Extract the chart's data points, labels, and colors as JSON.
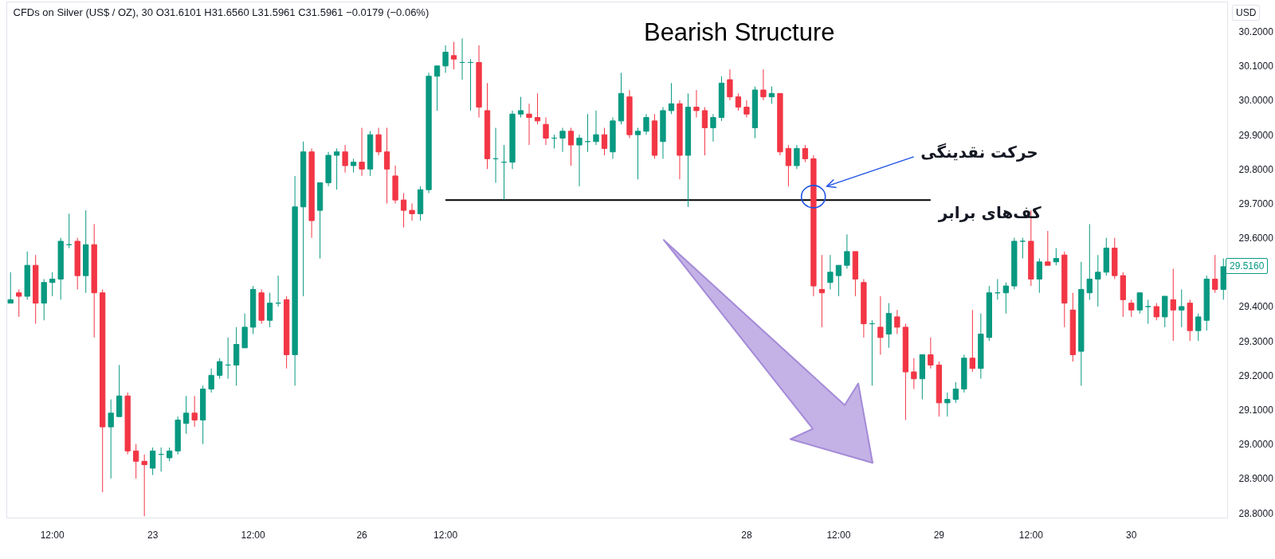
{
  "chart_data": {
    "type": "candlestick",
    "title": "Bearish Structure",
    "subtitle": "CFDs on Silver (US$ / OZ), 30  O31.6101 H31.6560 L31.5961 C31.5961 −0.0179 (−0.06%)",
    "ylabel": "USD",
    "categories": [
      null,
      null,
      null,
      null,
      null,
      "12:00",
      null,
      null,
      null,
      null,
      null,
      null,
      null,
      null,
      null,
      null,
      null,
      "23",
      null,
      null,
      null,
      null,
      null,
      null,
      null,
      null,
      null,
      null,
      null,
      "12:00",
      null,
      null,
      null,
      null,
      null,
      null,
      null,
      null,
      null,
      null,
      null,
      null,
      "26",
      null,
      null,
      null,
      null,
      null,
      null,
      null,
      null,
      null,
      "12:00",
      null,
      null,
      null,
      null,
      null,
      null,
      null,
      null,
      null,
      null,
      null,
      null,
      null,
      null,
      null,
      null,
      null,
      null,
      null,
      null,
      null,
      null,
      null,
      null,
      null,
      null,
      null,
      null,
      null,
      null,
      null,
      null,
      null,
      null,
      null,
      "28",
      null,
      null,
      null,
      null,
      null,
      null,
      null,
      null,
      null,
      null,
      "12:00",
      null,
      null,
      null,
      null,
      null,
      null,
      null,
      null,
      null,
      null,
      null,
      "29",
      null,
      null,
      null,
      null,
      null,
      null,
      null,
      null,
      null,
      null,
      "12:00",
      null,
      null,
      null,
      null,
      null,
      null,
      null,
      null,
      null,
      null,
      null,
      "30",
      null,
      null,
      null,
      null,
      null,
      null,
      null,
      null,
      null,
      null,
      null
    ],
    "ohlc": [
      [
        29.41,
        29.5,
        29.41,
        29.42
      ],
      [
        29.44,
        29.45,
        29.37,
        29.43
      ],
      [
        29.43,
        29.56,
        29.42,
        29.52
      ],
      [
        29.52,
        29.55,
        29.35,
        29.41
      ],
      [
        29.41,
        29.48,
        29.36,
        29.47
      ],
      [
        29.47,
        29.5,
        29.43,
        29.48
      ],
      [
        29.48,
        29.6,
        29.42,
        29.59
      ],
      [
        29.58,
        29.67,
        29.57,
        29.58
      ],
      [
        29.59,
        29.6,
        29.45,
        29.49
      ],
      [
        29.49,
        29.68,
        29.44,
        29.58
      ],
      [
        29.58,
        29.64,
        29.31,
        29.44
      ],
      [
        29.44,
        29.45,
        28.86,
        29.05
      ],
      [
        29.05,
        29.13,
        28.9,
        29.09
      ],
      [
        29.08,
        29.23,
        29.08,
        29.14
      ],
      [
        29.14,
        29.15,
        28.97,
        28.98
      ],
      [
        28.98,
        29.0,
        28.9,
        28.95
      ],
      [
        28.95,
        28.97,
        28.79,
        28.94
      ],
      [
        28.93,
        28.99,
        28.91,
        28.98
      ],
      [
        28.97,
        28.99,
        28.92,
        28.97
      ],
      [
        28.96,
        28.99,
        28.95,
        28.98
      ],
      [
        28.98,
        29.08,
        28.97,
        29.07
      ],
      [
        29.06,
        29.14,
        29.03,
        29.09
      ],
      [
        29.09,
        29.14,
        29.05,
        29.07
      ],
      [
        29.07,
        29.17,
        29.0,
        29.16
      ],
      [
        29.16,
        29.22,
        29.15,
        29.2
      ],
      [
        29.2,
        29.25,
        29.19,
        29.24
      ],
      [
        29.23,
        29.31,
        29.19,
        29.23
      ],
      [
        29.23,
        29.34,
        29.17,
        29.29
      ],
      [
        29.28,
        29.38,
        29.28,
        29.34
      ],
      [
        29.34,
        29.46,
        29.32,
        29.45
      ],
      [
        29.44,
        29.45,
        29.35,
        29.36
      ],
      [
        29.36,
        29.44,
        29.34,
        29.41
      ],
      [
        29.41,
        29.49,
        29.4,
        29.41
      ],
      [
        29.42,
        29.43,
        29.22,
        29.26
      ],
      [
        29.26,
        29.78,
        29.17,
        29.69
      ],
      [
        29.69,
        29.88,
        29.43,
        29.85
      ],
      [
        29.85,
        29.86,
        29.6,
        29.65
      ],
      [
        29.68,
        29.76,
        29.54,
        29.76
      ],
      [
        29.76,
        29.85,
        29.75,
        29.84
      ],
      [
        29.84,
        29.86,
        29.74,
        29.85
      ],
      [
        29.85,
        29.87,
        29.79,
        29.81
      ],
      [
        29.81,
        29.83,
        29.79,
        29.82
      ],
      [
        29.82,
        29.92,
        29.78,
        29.8
      ],
      [
        29.8,
        29.91,
        29.78,
        29.9
      ],
      [
        29.9,
        29.92,
        29.84,
        29.85
      ],
      [
        29.85,
        29.92,
        29.7,
        29.8
      ],
      [
        29.78,
        29.81,
        29.7,
        29.71
      ],
      [
        29.71,
        29.73,
        29.63,
        29.68
      ],
      [
        29.68,
        29.7,
        29.65,
        29.67
      ],
      [
        29.67,
        29.75,
        29.65,
        29.74
      ],
      [
        29.74,
        30.08,
        29.73,
        30.07
      ],
      [
        30.07,
        30.1,
        29.97,
        30.1
      ],
      [
        30.1,
        30.16,
        30.08,
        30.14
      ],
      [
        30.13,
        30.17,
        30.09,
        30.12
      ],
      [
        30.11,
        30.18,
        30.06,
        30.11
      ],
      [
        30.11,
        30.12,
        29.97,
        30.11
      ],
      [
        30.11,
        30.16,
        29.95,
        29.98
      ],
      [
        29.97,
        30.05,
        29.8,
        29.83
      ],
      [
        29.83,
        29.92,
        29.76,
        29.83
      ],
      [
        29.82,
        29.87,
        29.71,
        29.82
      ],
      [
        29.82,
        29.97,
        29.8,
        29.96
      ],
      [
        29.96,
        30.01,
        29.95,
        29.97
      ],
      [
        29.96,
        29.99,
        29.87,
        29.95
      ],
      [
        29.95,
        30.02,
        29.93,
        29.94
      ],
      [
        29.93,
        29.95,
        29.87,
        29.89
      ],
      [
        29.89,
        29.9,
        29.86,
        29.89
      ],
      [
        29.89,
        29.92,
        29.85,
        29.91
      ],
      [
        29.91,
        29.92,
        29.81,
        29.87
      ],
      [
        29.87,
        29.9,
        29.75,
        29.89
      ],
      [
        29.88,
        29.96,
        29.85,
        29.88
      ],
      [
        29.88,
        29.97,
        29.87,
        29.9
      ],
      [
        29.9,
        29.92,
        29.84,
        29.86
      ],
      [
        29.85,
        29.95,
        29.83,
        29.94
      ],
      [
        29.94,
        30.08,
        29.93,
        30.02
      ],
      [
        30.01,
        30.03,
        29.89,
        29.9
      ],
      [
        29.9,
        29.92,
        29.77,
        29.91
      ],
      [
        29.91,
        29.96,
        29.9,
        29.95
      ],
      [
        29.94,
        29.96,
        29.83,
        29.84
      ],
      [
        29.88,
        29.98,
        29.83,
        29.97
      ],
      [
        29.97,
        30.05,
        29.96,
        29.99
      ],
      [
        29.99,
        30.0,
        29.77,
        29.84
      ],
      [
        29.84,
        30.02,
        29.69,
        29.98
      ],
      [
        29.98,
        30.03,
        29.95,
        29.97
      ],
      [
        29.97,
        29.98,
        29.84,
        29.92
      ],
      [
        29.92,
        29.96,
        29.88,
        29.95
      ],
      [
        29.95,
        30.07,
        29.94,
        30.05
      ],
      [
        30.06,
        30.09,
        30.0,
        30.01
      ],
      [
        30.01,
        30.02,
        29.97,
        29.98
      ],
      [
        29.98,
        30.0,
        29.95,
        29.96
      ],
      [
        29.92,
        30.04,
        29.89,
        30.03
      ],
      [
        30.03,
        30.09,
        30.0,
        30.01
      ],
      [
        30.01,
        30.04,
        29.99,
        30.02
      ],
      [
        30.02,
        30.02,
        29.84,
        29.85
      ],
      [
        29.86,
        29.87,
        29.75,
        29.81
      ],
      [
        29.81,
        29.87,
        29.8,
        29.86
      ],
      [
        29.86,
        29.87,
        29.82,
        29.83
      ],
      [
        29.83,
        29.84,
        29.43,
        29.46
      ],
      [
        29.45,
        29.55,
        29.34,
        29.44
      ],
      [
        29.47,
        29.55,
        29.45,
        29.5
      ],
      [
        29.49,
        29.52,
        29.43,
        29.52
      ],
      [
        29.52,
        29.61,
        29.51,
        29.56
      ],
      [
        29.56,
        29.56,
        29.43,
        29.48
      ],
      [
        29.47,
        29.48,
        29.31,
        29.35
      ],
      [
        29.35,
        29.36,
        29.17,
        29.35
      ],
      [
        29.34,
        29.43,
        29.26,
        29.31
      ],
      [
        29.32,
        29.41,
        29.28,
        29.38
      ],
      [
        29.37,
        29.39,
        29.32,
        29.34
      ],
      [
        29.34,
        29.35,
        29.07,
        29.21
      ],
      [
        29.21,
        29.25,
        29.16,
        29.19
      ],
      [
        29.19,
        29.26,
        29.13,
        29.26
      ],
      [
        29.26,
        29.31,
        29.22,
        29.23
      ],
      [
        29.23,
        29.24,
        29.08,
        29.12
      ],
      [
        29.12,
        29.15,
        29.08,
        29.13
      ],
      [
        29.13,
        29.18,
        29.12,
        29.16
      ],
      [
        29.16,
        29.26,
        29.15,
        29.25
      ],
      [
        29.25,
        29.39,
        29.21,
        29.22
      ],
      [
        29.22,
        29.38,
        29.19,
        29.32
      ],
      [
        29.31,
        29.46,
        29.3,
        29.44
      ],
      [
        29.44,
        29.48,
        29.42,
        29.44
      ],
      [
        29.44,
        29.47,
        29.38,
        29.46
      ],
      [
        29.46,
        29.6,
        29.45,
        29.59
      ],
      [
        29.59,
        29.6,
        29.54,
        29.59
      ],
      [
        29.59,
        29.68,
        29.46,
        29.48
      ],
      [
        29.48,
        29.54,
        29.44,
        29.53
      ],
      [
        29.53,
        29.62,
        29.52,
        29.52
      ],
      [
        29.53,
        29.57,
        29.52,
        29.54
      ],
      [
        29.55,
        29.56,
        29.34,
        29.41
      ],
      [
        29.39,
        29.44,
        29.24,
        29.26
      ],
      [
        29.27,
        29.53,
        29.17,
        29.45
      ],
      [
        29.44,
        29.64,
        29.42,
        29.48
      ],
      [
        29.48,
        29.55,
        29.4,
        29.5
      ],
      [
        29.5,
        29.6,
        29.49,
        29.57
      ],
      [
        29.57,
        29.6,
        29.48,
        29.49
      ],
      [
        29.49,
        29.5,
        29.37,
        29.42
      ],
      [
        29.41,
        29.42,
        29.37,
        29.39
      ],
      [
        29.39,
        29.44,
        29.38,
        29.44
      ],
      [
        29.4,
        29.42,
        29.35,
        29.4
      ],
      [
        29.4,
        29.41,
        29.36,
        29.37
      ],
      [
        29.37,
        29.43,
        29.34,
        29.43
      ],
      [
        29.42,
        29.51,
        29.3,
        29.39
      ],
      [
        29.39,
        29.45,
        29.34,
        29.4
      ],
      [
        29.41,
        29.42,
        29.3,
        29.33
      ],
      [
        29.33,
        29.38,
        29.3,
        29.37
      ],
      [
        29.36,
        29.49,
        29.33,
        29.48
      ],
      [
        29.48,
        29.55,
        29.44,
        29.45
      ],
      [
        29.45,
        29.54,
        29.42,
        29.516
      ]
    ],
    "colors": [
      "#089981",
      "#f23645",
      "#089981",
      "#f23645",
      "#089981",
      "#089981",
      "#089981",
      "#089981",
      "#f23645",
      "#089981",
      "#f23645",
      "#f23645",
      "#089981",
      "#089981",
      "#f23645",
      "#f23645",
      "#f23645",
      "#089981",
      "#089981",
      "#089981",
      "#089981",
      "#089981",
      "#f23645",
      "#089981",
      "#089981",
      "#089981",
      "#089981",
      "#089981",
      "#089981",
      "#089981",
      "#f23645",
      "#089981",
      "#089981",
      "#f23645",
      "#089981",
      "#089981",
      "#f23645",
      "#089981",
      "#089981",
      "#089981",
      "#f23645",
      "#089981",
      "#f23645",
      "#089981",
      "#f23645",
      "#f23645",
      "#f23645",
      "#f23645",
      "#f23645",
      "#089981",
      "#089981",
      "#089981",
      "#089981",
      "#f23645",
      "#089981",
      "#089981",
      "#f23645",
      "#f23645",
      "#089981",
      "#089981",
      "#089981",
      "#089981",
      "#f23645",
      "#f23645",
      "#f23645",
      "#089981",
      "#089981",
      "#f23645",
      "#089981",
      "#089981",
      "#089981",
      "#f23645",
      "#089981",
      "#089981",
      "#f23645",
      "#089981",
      "#089981",
      "#f23645",
      "#089981",
      "#089981",
      "#f23645",
      "#089981",
      "#f23645",
      "#f23645",
      "#089981",
      "#089981",
      "#f23645",
      "#f23645",
      "#f23645",
      "#089981",
      "#f23645",
      "#089981",
      "#f23645",
      "#f23645",
      "#089981",
      "#f23645",
      "#f23645",
      "#f23645",
      "#089981",
      "#089981",
      "#089981",
      "#f23645",
      "#f23645",
      "#089981",
      "#f23645",
      "#089981",
      "#f23645",
      "#f23645",
      "#f23645",
      "#089981",
      "#f23645",
      "#f23645",
      "#089981",
      "#089981",
      "#089981",
      "#f23645",
      "#089981",
      "#089981",
      "#089981",
      "#089981",
      "#089981",
      "#089981",
      "#f23645",
      "#089981",
      "#f23645",
      "#089981",
      "#f23645",
      "#f23645",
      "#089981",
      "#089981",
      "#089981",
      "#089981",
      "#f23645",
      "#f23645",
      "#f23645",
      "#089981",
      "#089981",
      "#f23645",
      "#089981",
      "#f23645",
      "#089981",
      "#f23645",
      "#089981",
      "#089981",
      "#f23645",
      "#089981"
    ],
    "ylim": [
      28.785,
      30.286
    ],
    "yticks": [
      {
        "value": 28.8,
        "label": "28.8000"
      },
      {
        "value": 28.9,
        "label": "28.9000"
      },
      {
        "value": 29.0,
        "label": "29.0000"
      },
      {
        "value": 29.1,
        "label": "29.1000"
      },
      {
        "value": 29.2,
        "label": "29.2000"
      },
      {
        "value": 29.3,
        "label": "29.3000"
      },
      {
        "value": 29.4,
        "label": "29.4000"
      },
      {
        "value": 29.6,
        "label": "29.6000"
      },
      {
        "value": 29.7,
        "label": "29.7000"
      },
      {
        "value": 29.8,
        "label": "29.8000"
      },
      {
        "value": 29.9,
        "label": "29.9000"
      },
      {
        "value": 30.0,
        "label": "30.0000"
      },
      {
        "value": 30.1,
        "label": "30.1000"
      },
      {
        "value": 30.2,
        "label": "30.2000"
      }
    ],
    "series": [
      {
        "type": "line",
        "name": "کف‌های برابر",
        "color": "#000000",
        "values": [
          null,
          null,
          null,
          null,
          null,
          null,
          null,
          null,
          null,
          null,
          null,
          null,
          null,
          null,
          null,
          null,
          null,
          null,
          null,
          null,
          null,
          null,
          null,
          null,
          null,
          null,
          null,
          null,
          null,
          null,
          null,
          null,
          null,
          null,
          null,
          null,
          null,
          null,
          null,
          null,
          null,
          null,
          null,
          null,
          null,
          null,
          null,
          null,
          null,
          null,
          null,
          null,
          29.71,
          29.71,
          29.71,
          29.71,
          29.71,
          29.71,
          29.71,
          29.71,
          29.71,
          29.71,
          29.71,
          29.71,
          29.71,
          29.71,
          29.71,
          29.71,
          29.71,
          29.71,
          29.71,
          29.71,
          29.71,
          29.71,
          29.71,
          29.71,
          29.71,
          29.71,
          29.71,
          29.71,
          29.71,
          29.71,
          29.71,
          29.71,
          29.71,
          29.71,
          29.71,
          29.71,
          29.71,
          29.71,
          29.71,
          29.71,
          29.71,
          29.71,
          29.71,
          29.71,
          29.71,
          29.71,
          29.71,
          29.71,
          29.71,
          29.71,
          29.71,
          29.71,
          29.71,
          29.71,
          29.71,
          29.71,
          29.71,
          29.71,
          29.71,
          null,
          null,
          null,
          null,
          null,
          null,
          null,
          null,
          null,
          null,
          null,
          null,
          null,
          null,
          null,
          null,
          null,
          null,
          null,
          null,
          null,
          null,
          null,
          null,
          null,
          null,
          null,
          null,
          null,
          null,
          null,
          null,
          null,
          null,
          null
        ]
      }
    ],
    "annotations": [
      "حرکت نقدینگی",
      "29.5160"
    ]
  }
}
